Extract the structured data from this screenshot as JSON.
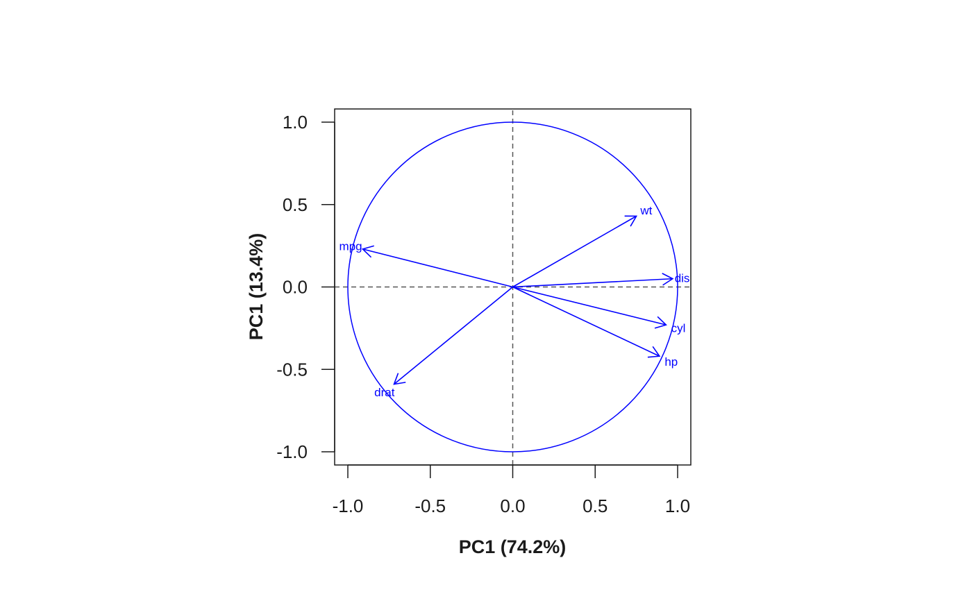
{
  "chart_data": {
    "type": "scatter",
    "title": "",
    "xlabel": "PC1 (74.2%)",
    "ylabel": "PC1 (13.4%)",
    "xlim": [
      -1.08,
      1.08
    ],
    "ylim": [
      -1.08,
      1.08
    ],
    "xticks": [
      -1.0,
      -0.5,
      0.0,
      0.5,
      1.0
    ],
    "yticks": [
      -1.0,
      -0.5,
      0.0,
      0.5,
      1.0
    ],
    "xtick_labels": [
      "-1.0",
      "-0.5",
      "0.0",
      "0.5",
      "1.0"
    ],
    "ytick_labels": [
      "-1.0",
      "-0.5",
      "0.0",
      "0.5",
      "1.0"
    ],
    "unit_circle": true,
    "reference_lines": {
      "x": 0,
      "y": 0,
      "style": "dashed"
    },
    "vectors": [
      {
        "label": "wt",
        "x": 0.75,
        "y": 0.43
      },
      {
        "label": "mpg",
        "x": -0.91,
        "y": 0.23
      },
      {
        "label": "disp",
        "x": 0.97,
        "y": 0.05
      },
      {
        "label": "cyl",
        "x": 0.93,
        "y": -0.23
      },
      {
        "label": "hp",
        "x": 0.89,
        "y": -0.42
      },
      {
        "label": "drat",
        "x": -0.72,
        "y": -0.59
      }
    ],
    "colors": {
      "vectors": "#0000ff",
      "axes": "#1a1a1a",
      "reference": "#555555"
    }
  }
}
